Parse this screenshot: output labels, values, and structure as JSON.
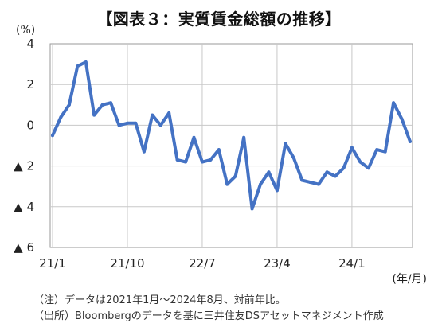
{
  "figure": {
    "title": "【図表３：実質賃金総額の推移】",
    "notes": [
      "（注）データは2021年1月～2024年8月、対前年比。",
      "（出所）Bloombergのデータを基に三井住友DSアセットマネジメント作成"
    ]
  },
  "chart_data": {
    "type": "line",
    "title": "【図表３：実質賃金総額の推移】",
    "y_unit": "(%)",
    "x_unit": "(年/月)",
    "ylim": [
      -6,
      4
    ],
    "y_ticks": [
      {
        "value": 4,
        "label": "4"
      },
      {
        "value": 2,
        "label": "2"
      },
      {
        "value": 0,
        "label": "0"
      },
      {
        "value": -2,
        "label": "▲ 2"
      },
      {
        "value": -4,
        "label": "▲ 4"
      },
      {
        "value": -6,
        "label": "▲ 6"
      }
    ],
    "x_ticks": [
      {
        "index": 0,
        "label": "21/1"
      },
      {
        "index": 9,
        "label": "21/10"
      },
      {
        "index": 18,
        "label": "22/7"
      },
      {
        "index": 27,
        "label": "23/4"
      },
      {
        "index": 36,
        "label": "24/1"
      }
    ],
    "grid": true,
    "line_color": "#4472C4",
    "series": [
      {
        "x": [
          "21/1",
          "21/2",
          "21/3",
          "21/4",
          "21/5",
          "21/6",
          "21/7",
          "21/8",
          "21/9",
          "21/10",
          "21/11",
          "21/12",
          "22/1",
          "22/2",
          "22/3",
          "22/4",
          "22/5",
          "22/6",
          "22/7",
          "22/8",
          "22/9",
          "22/10",
          "22/11",
          "22/12",
          "23/1",
          "23/2",
          "23/3",
          "23/4",
          "23/5",
          "23/6",
          "23/7",
          "23/8",
          "23/9",
          "23/10",
          "23/11",
          "23/12",
          "24/1",
          "24/2",
          "24/3",
          "24/4",
          "24/5",
          "24/6",
          "24/7",
          "24/8"
        ],
        "values": [
          -0.5,
          0.4,
          1.0,
          2.9,
          3.1,
          0.5,
          1.0,
          1.1,
          0.0,
          0.1,
          0.1,
          -1.3,
          0.5,
          0.0,
          0.6,
          -1.7,
          -1.8,
          -0.6,
          -1.8,
          -1.7,
          -1.2,
          -2.9,
          -2.5,
          -0.6,
          -4.1,
          -2.9,
          -2.3,
          -3.2,
          -0.9,
          -1.6,
          -2.7,
          -2.8,
          -2.9,
          -2.3,
          -2.5,
          -2.1,
          -1.1,
          -1.8,
          -2.1,
          -1.2,
          -1.3,
          1.1,
          0.3,
          -0.8
        ]
      }
    ]
  }
}
